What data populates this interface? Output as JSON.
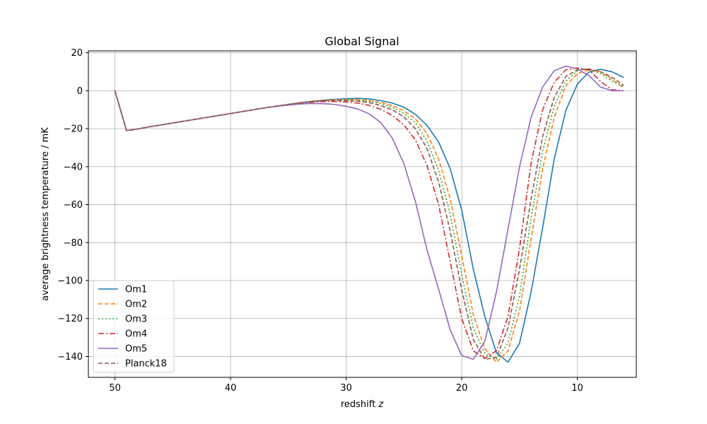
{
  "chart_data": {
    "type": "line",
    "title": "Global Signal",
    "xlabel": "redshift",
    "xlabel_var": "z",
    "ylabel": "average brightness temperature / mK",
    "xlim": [
      52.3,
      4.9
    ],
    "ylim": [
      -151,
      21
    ],
    "x_reversed": true,
    "grid": true,
    "legend_position": "lower-left",
    "xticks": [
      50,
      40,
      30,
      20,
      10
    ],
    "yticks": [
      20,
      0,
      -20,
      -40,
      -60,
      -80,
      -100,
      -120,
      -140
    ],
    "x": [
      50,
      49,
      48,
      47,
      46,
      45,
      44,
      43,
      42,
      41,
      40,
      39,
      38,
      37,
      36,
      35,
      34,
      33,
      32,
      31,
      30,
      29,
      28,
      27,
      26,
      25,
      24,
      23,
      22,
      21,
      20,
      19,
      18,
      17,
      16,
      15,
      14,
      13,
      12,
      11,
      10,
      9,
      8,
      7,
      6
    ],
    "series": [
      {
        "name": "Om1",
        "color": "#1f77b4",
        "dash": "solid",
        "values": [
          0,
          -21,
          -20.1,
          -19,
          -18,
          -17,
          -16,
          -15,
          -14,
          -13,
          -12,
          -11,
          -10,
          -9,
          -8.1,
          -7.2,
          -6.4,
          -5.6,
          -5,
          -4.5,
          -4.2,
          -4,
          -4.3,
          -5.2,
          -6.5,
          -8.7,
          -12.5,
          -18.3,
          -27,
          -41,
          -63,
          -94,
          -119,
          -138,
          -143,
          -133,
          -106,
          -72,
          -36,
          -10.5,
          3.5,
          9.8,
          11.3,
          10,
          7
        ]
      },
      {
        "name": "Om2",
        "color": "#ff7f0e",
        "dash": "dashed",
        "values": [
          0,
          -21,
          -20.1,
          -19,
          -18,
          -17,
          -16,
          -15,
          -14,
          -13,
          -12,
          -11,
          -10,
          -9,
          -8.1,
          -7.2,
          -6.4,
          -5.6,
          -5.1,
          -4.7,
          -4.6,
          -4.6,
          -5.1,
          -6.1,
          -7.8,
          -10.6,
          -15,
          -22.6,
          -36,
          -57,
          -87,
          -118,
          -136,
          -143,
          -137,
          -116,
          -78,
          -41,
          -14,
          2.5,
          9,
          11,
          10,
          6,
          1.5
        ]
      },
      {
        "name": "Om3",
        "color": "#2ca02c",
        "dash": "dotted",
        "values": [
          0,
          -21,
          -20.1,
          -19,
          -18,
          -17,
          -16,
          -15,
          -14,
          -13,
          -12,
          -11,
          -10,
          -9,
          -8.1,
          -7.2,
          -6.4,
          -5.6,
          -5.2,
          -4.9,
          -4.9,
          -5,
          -5.6,
          -6.8,
          -8.8,
          -12,
          -17,
          -26.5,
          -42,
          -65,
          -97,
          -125,
          -138.5,
          -141.5,
          -133,
          -108,
          -67,
          -32,
          -8,
          5,
          10.5,
          11.5,
          9,
          5,
          2.5
        ]
      },
      {
        "name": "Om4",
        "color": "#d62728",
        "dash": "dashdot",
        "values": [
          0,
          -21,
          -20.1,
          -19,
          -18,
          -17,
          -16,
          -15,
          -14,
          -13,
          -12,
          -11,
          -10,
          -9,
          -8.1,
          -7.3,
          -6.6,
          -6,
          -5.7,
          -5.6,
          -5.9,
          -6.5,
          -7.7,
          -9.8,
          -13,
          -18,
          -26,
          -39.5,
          -60,
          -90,
          -120,
          -137,
          -141,
          -137,
          -119,
          -83,
          -38,
          -10,
          4.5,
          11,
          12,
          11,
          5,
          0.5,
          0
        ]
      },
      {
        "name": "Om5",
        "color": "#9467bd",
        "dash": "solid",
        "values": [
          0,
          -21,
          -20.1,
          -19,
          -18,
          -17,
          -16,
          -15,
          -14,
          -13,
          -12,
          -11,
          -10,
          -9,
          -8.2,
          -7.5,
          -7,
          -6.7,
          -6.8,
          -7.2,
          -8.2,
          -9.6,
          -12.2,
          -16.8,
          -25,
          -38.5,
          -58.5,
          -84,
          -104.5,
          -126,
          -139.5,
          -141.5,
          -132,
          -106,
          -73,
          -40,
          -14,
          2,
          10.5,
          13,
          11.5,
          8,
          2,
          0,
          0
        ]
      },
      {
        "name": "Planck18",
        "color": "#8c564b",
        "dash": "dashed",
        "values": [
          0,
          -21,
          -20.1,
          -19,
          -18,
          -17,
          -16,
          -15,
          -14,
          -13,
          -12,
          -11,
          -10,
          -9,
          -8.1,
          -7.2,
          -6.4,
          -5.7,
          -5.3,
          -5.1,
          -5.2,
          -5.5,
          -6.3,
          -7.8,
          -10.1,
          -13.8,
          -20,
          -30.5,
          -48,
          -74,
          -105,
          -131,
          -141.5,
          -140.5,
          -125,
          -94,
          -57,
          -24,
          -3.5,
          7.5,
          11,
          11.5,
          10,
          7,
          3
        ]
      }
    ]
  }
}
